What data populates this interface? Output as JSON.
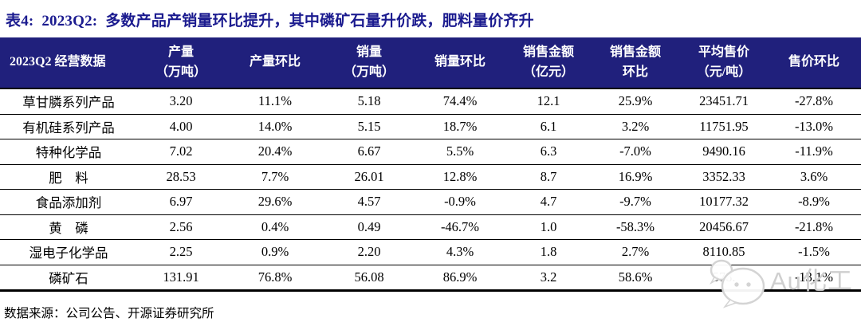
{
  "title": "表4:  2023Q2:  多数产品产销量环比提升，其中磷矿石量升价跌，肥料量价齐升",
  "colors": {
    "title_text": "#1b1b8f",
    "header_bg": "#20207c",
    "header_text": "#ffffff",
    "body_text": "#000000",
    "watermark_gray": "#cfcfcf"
  },
  "table": {
    "headers": [
      {
        "id": "product",
        "line1": "2023Q2 经营数据",
        "line2": ""
      },
      {
        "id": "output",
        "line1": "产量",
        "line2": "（万吨）"
      },
      {
        "id": "output-qoq",
        "line1": "产量环比",
        "line2": ""
      },
      {
        "id": "sales-volume",
        "line1": "销量",
        "line2": "（万吨）"
      },
      {
        "id": "sales-volume-qoq",
        "line1": "销量环比",
        "line2": ""
      },
      {
        "id": "sales-amount",
        "line1": "销售金额",
        "line2": "（亿元）"
      },
      {
        "id": "sales-amount-qoq",
        "line1": "销售金额",
        "line2": "环比"
      },
      {
        "id": "avg-price",
        "line1": "平均售价",
        "line2": "（元/吨）"
      },
      {
        "id": "price-qoq",
        "line1": "售价环比",
        "line2": ""
      }
    ],
    "rows": [
      {
        "product": "草甘膦系列产品",
        "values": [
          "3.20",
          "11.1%",
          "5.18",
          "74.4%",
          "12.1",
          "25.9%",
          "23451.71",
          "-27.8%"
        ]
      },
      {
        "product": "有机硅系列产品",
        "values": [
          "4.00",
          "14.0%",
          "5.15",
          "18.7%",
          "6.1",
          "3.2%",
          "11751.95",
          "-13.0%"
        ]
      },
      {
        "product": "特种化学品",
        "values": [
          "7.02",
          "20.4%",
          "6.67",
          "5.5%",
          "6.3",
          "-7.0%",
          "9490.16",
          "-11.9%"
        ]
      },
      {
        "product": "肥　料",
        "values": [
          "28.53",
          "7.7%",
          "26.01",
          "12.8%",
          "8.7",
          "16.9%",
          "3352.33",
          "3.6%"
        ]
      },
      {
        "product": "食品添加剂",
        "values": [
          "6.97",
          "29.6%",
          "4.57",
          "-0.9%",
          "4.7",
          "-9.7%",
          "10177.32",
          "-8.9%"
        ]
      },
      {
        "product": "黄　磷",
        "values": [
          "2.56",
          "0.4%",
          "0.49",
          "-46.7%",
          "1.0",
          "-58.3%",
          "20456.67",
          "-21.8%"
        ]
      },
      {
        "product": "湿电子化学品",
        "values": [
          "2.25",
          "0.9%",
          "2.20",
          "4.3%",
          "1.8",
          "2.7%",
          "8110.85",
          "-1.5%"
        ]
      },
      {
        "product": "磷矿石",
        "values": [
          "131.91",
          "76.8%",
          "56.08",
          "86.9%",
          "3.2",
          "58.6%",
          "578.",
          "-13.1%"
        ]
      }
    ]
  },
  "footer": {
    "source": "数据来源：公司公告、开源证券研究所"
  },
  "watermark": {
    "icon": "wechat-logo-icon",
    "text": "Au化工"
  }
}
